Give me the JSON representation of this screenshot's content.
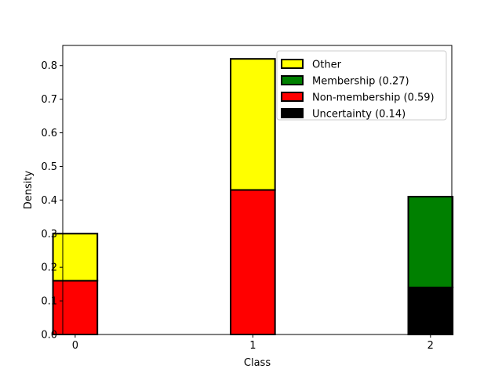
{
  "chart_data": {
    "type": "bar",
    "stacked": true,
    "title": "",
    "xlabel": "Class",
    "ylabel": "Density",
    "categories": [
      "0",
      "1",
      "2"
    ],
    "xlim": [
      -0.07,
      2.12
    ],
    "ylim": [
      0,
      0.86
    ],
    "yticks": [
      "0.0",
      "0.1",
      "0.2",
      "0.3",
      "0.4",
      "0.5",
      "0.6",
      "0.7",
      "0.8"
    ],
    "grid": false,
    "legend_position": "top-right",
    "segments": [
      {
        "category": "0",
        "series": "Non-membership (0.59)",
        "bottom": 0,
        "value": 0.16,
        "color": "#ff0000"
      },
      {
        "category": "0",
        "series": "Other",
        "bottom": 0.16,
        "value": 0.14,
        "color": "#ffff00"
      },
      {
        "category": "1",
        "series": "Non-membership (0.59)",
        "bottom": 0,
        "value": 0.43,
        "color": "#ff0000"
      },
      {
        "category": "1",
        "series": "Other",
        "bottom": 0.43,
        "value": 0.39,
        "color": "#ffff00"
      },
      {
        "category": "2",
        "series": "Uncertainty (0.14)",
        "bottom": 0,
        "value": 0.14,
        "color": "#000000"
      },
      {
        "category": "2",
        "series": "Membership (0.27)",
        "bottom": 0.14,
        "value": 0.27,
        "color": "#008000"
      }
    ],
    "legend": [
      {
        "label": "Other",
        "color": "#ffff00"
      },
      {
        "label": "Membership (0.27)",
        "color": "#008000"
      },
      {
        "label": "Non-membership (0.59)",
        "color": "#ff0000"
      },
      {
        "label": "Uncertainty (0.14)",
        "color": "#000000"
      }
    ]
  }
}
